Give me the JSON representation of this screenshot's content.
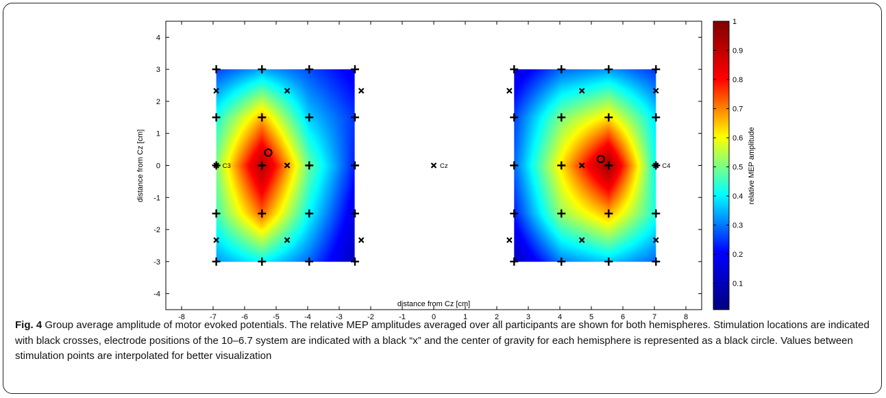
{
  "chart_data": {
    "type": "heatmap",
    "xlabel": "distance from Cz [cm]",
    "ylabel": "distance from Cz [cm]",
    "colorbar_label": "relative MEP amplitude",
    "xlim": [
      -8.5,
      8.5
    ],
    "ylim": [
      -4.5,
      4.5
    ],
    "xticks": [
      -8,
      -7,
      -6,
      -5,
      -4,
      -3,
      -2,
      -1,
      0,
      1,
      2,
      3,
      4,
      5,
      6,
      7,
      8
    ],
    "yticks": [
      -4,
      -3,
      -2,
      -1,
      0,
      1,
      2,
      3,
      4
    ],
    "colorbar_ticks": [
      0.1,
      0.2,
      0.3,
      0.4,
      0.5,
      0.6,
      0.7,
      0.8,
      0.9,
      1
    ],
    "colormap": "jet",
    "colormap_stops": [
      "#00007f",
      "#0000ff",
      "#00ffff",
      "#ffff00",
      "#ff0000",
      "#7f0000"
    ],
    "marker_color": "#000000",
    "hemispheres": [
      {
        "name": "left",
        "xrange": [
          -6.9,
          -2.5
        ],
        "yrange": [
          -3.0,
          3.0
        ],
        "stimulation_x": [
          -6.9,
          -5.45,
          -3.95,
          -2.5
        ],
        "stimulation_y": [
          -3.0,
          -1.5,
          0.0,
          1.5,
          3.0
        ],
        "amplitude_grid": [
          [
            0.32,
            0.4,
            0.28,
            0.1
          ],
          [
            0.45,
            0.72,
            0.4,
            0.16
          ],
          [
            0.5,
            0.92,
            0.48,
            0.22
          ],
          [
            0.42,
            0.66,
            0.36,
            0.24
          ],
          [
            0.25,
            0.33,
            0.26,
            0.18
          ]
        ],
        "center_of_gravity": [
          -5.25,
          0.4
        ]
      },
      {
        "name": "right",
        "xrange": [
          2.55,
          7.05
        ],
        "yrange": [
          -3.0,
          3.0
        ],
        "stimulation_x": [
          2.55,
          4.05,
          5.55,
          7.05
        ],
        "stimulation_y": [
          -3.0,
          -1.5,
          0.0,
          1.5,
          3.0
        ],
        "amplitude_grid": [
          [
            0.1,
            0.3,
            0.36,
            0.28
          ],
          [
            0.22,
            0.52,
            0.66,
            0.42
          ],
          [
            0.28,
            0.62,
            0.95,
            0.4
          ],
          [
            0.25,
            0.5,
            0.62,
            0.38
          ],
          [
            0.15,
            0.28,
            0.32,
            0.24
          ]
        ],
        "center_of_gravity": [
          5.3,
          0.2
        ]
      }
    ],
    "electrodes": [
      {
        "label": "",
        "x": -6.9,
        "y": 2.33
      },
      {
        "label": "",
        "x": -4.65,
        "y": 2.33
      },
      {
        "label": "",
        "x": -2.3,
        "y": 2.33
      },
      {
        "label": "C3",
        "x": -6.9,
        "y": 0.0
      },
      {
        "label": "",
        "x": -4.65,
        "y": 0.0
      },
      {
        "label": "",
        "x": -6.9,
        "y": -2.33
      },
      {
        "label": "",
        "x": -4.65,
        "y": -2.33
      },
      {
        "label": "",
        "x": -2.3,
        "y": -2.33
      },
      {
        "label": "Cz",
        "x": 0.0,
        "y": 0.0
      },
      {
        "label": "",
        "x": 2.4,
        "y": 2.33
      },
      {
        "label": "",
        "x": 4.7,
        "y": 2.33
      },
      {
        "label": "",
        "x": 7.05,
        "y": 2.33
      },
      {
        "label": "",
        "x": 4.7,
        "y": 0.0
      },
      {
        "label": "C4",
        "x": 7.05,
        "y": 0.0
      },
      {
        "label": "",
        "x": 2.4,
        "y": -2.33
      },
      {
        "label": "",
        "x": 4.7,
        "y": -2.33
      },
      {
        "label": "",
        "x": 7.05,
        "y": -2.33
      }
    ]
  },
  "caption": {
    "figure_label": "Fig. 4",
    "text": " Group average amplitude of motor evoked potentials. The relative MEP amplitudes averaged over all participants are shown for both hemispheres. Stimulation locations are indicated with black crosses, electrode positions of the 10–6.7 system are indicated with a black “x” and the center of gravity for each hemisphere is represented as a black circle. Values between stimulation points are interpolated for better visualization"
  }
}
